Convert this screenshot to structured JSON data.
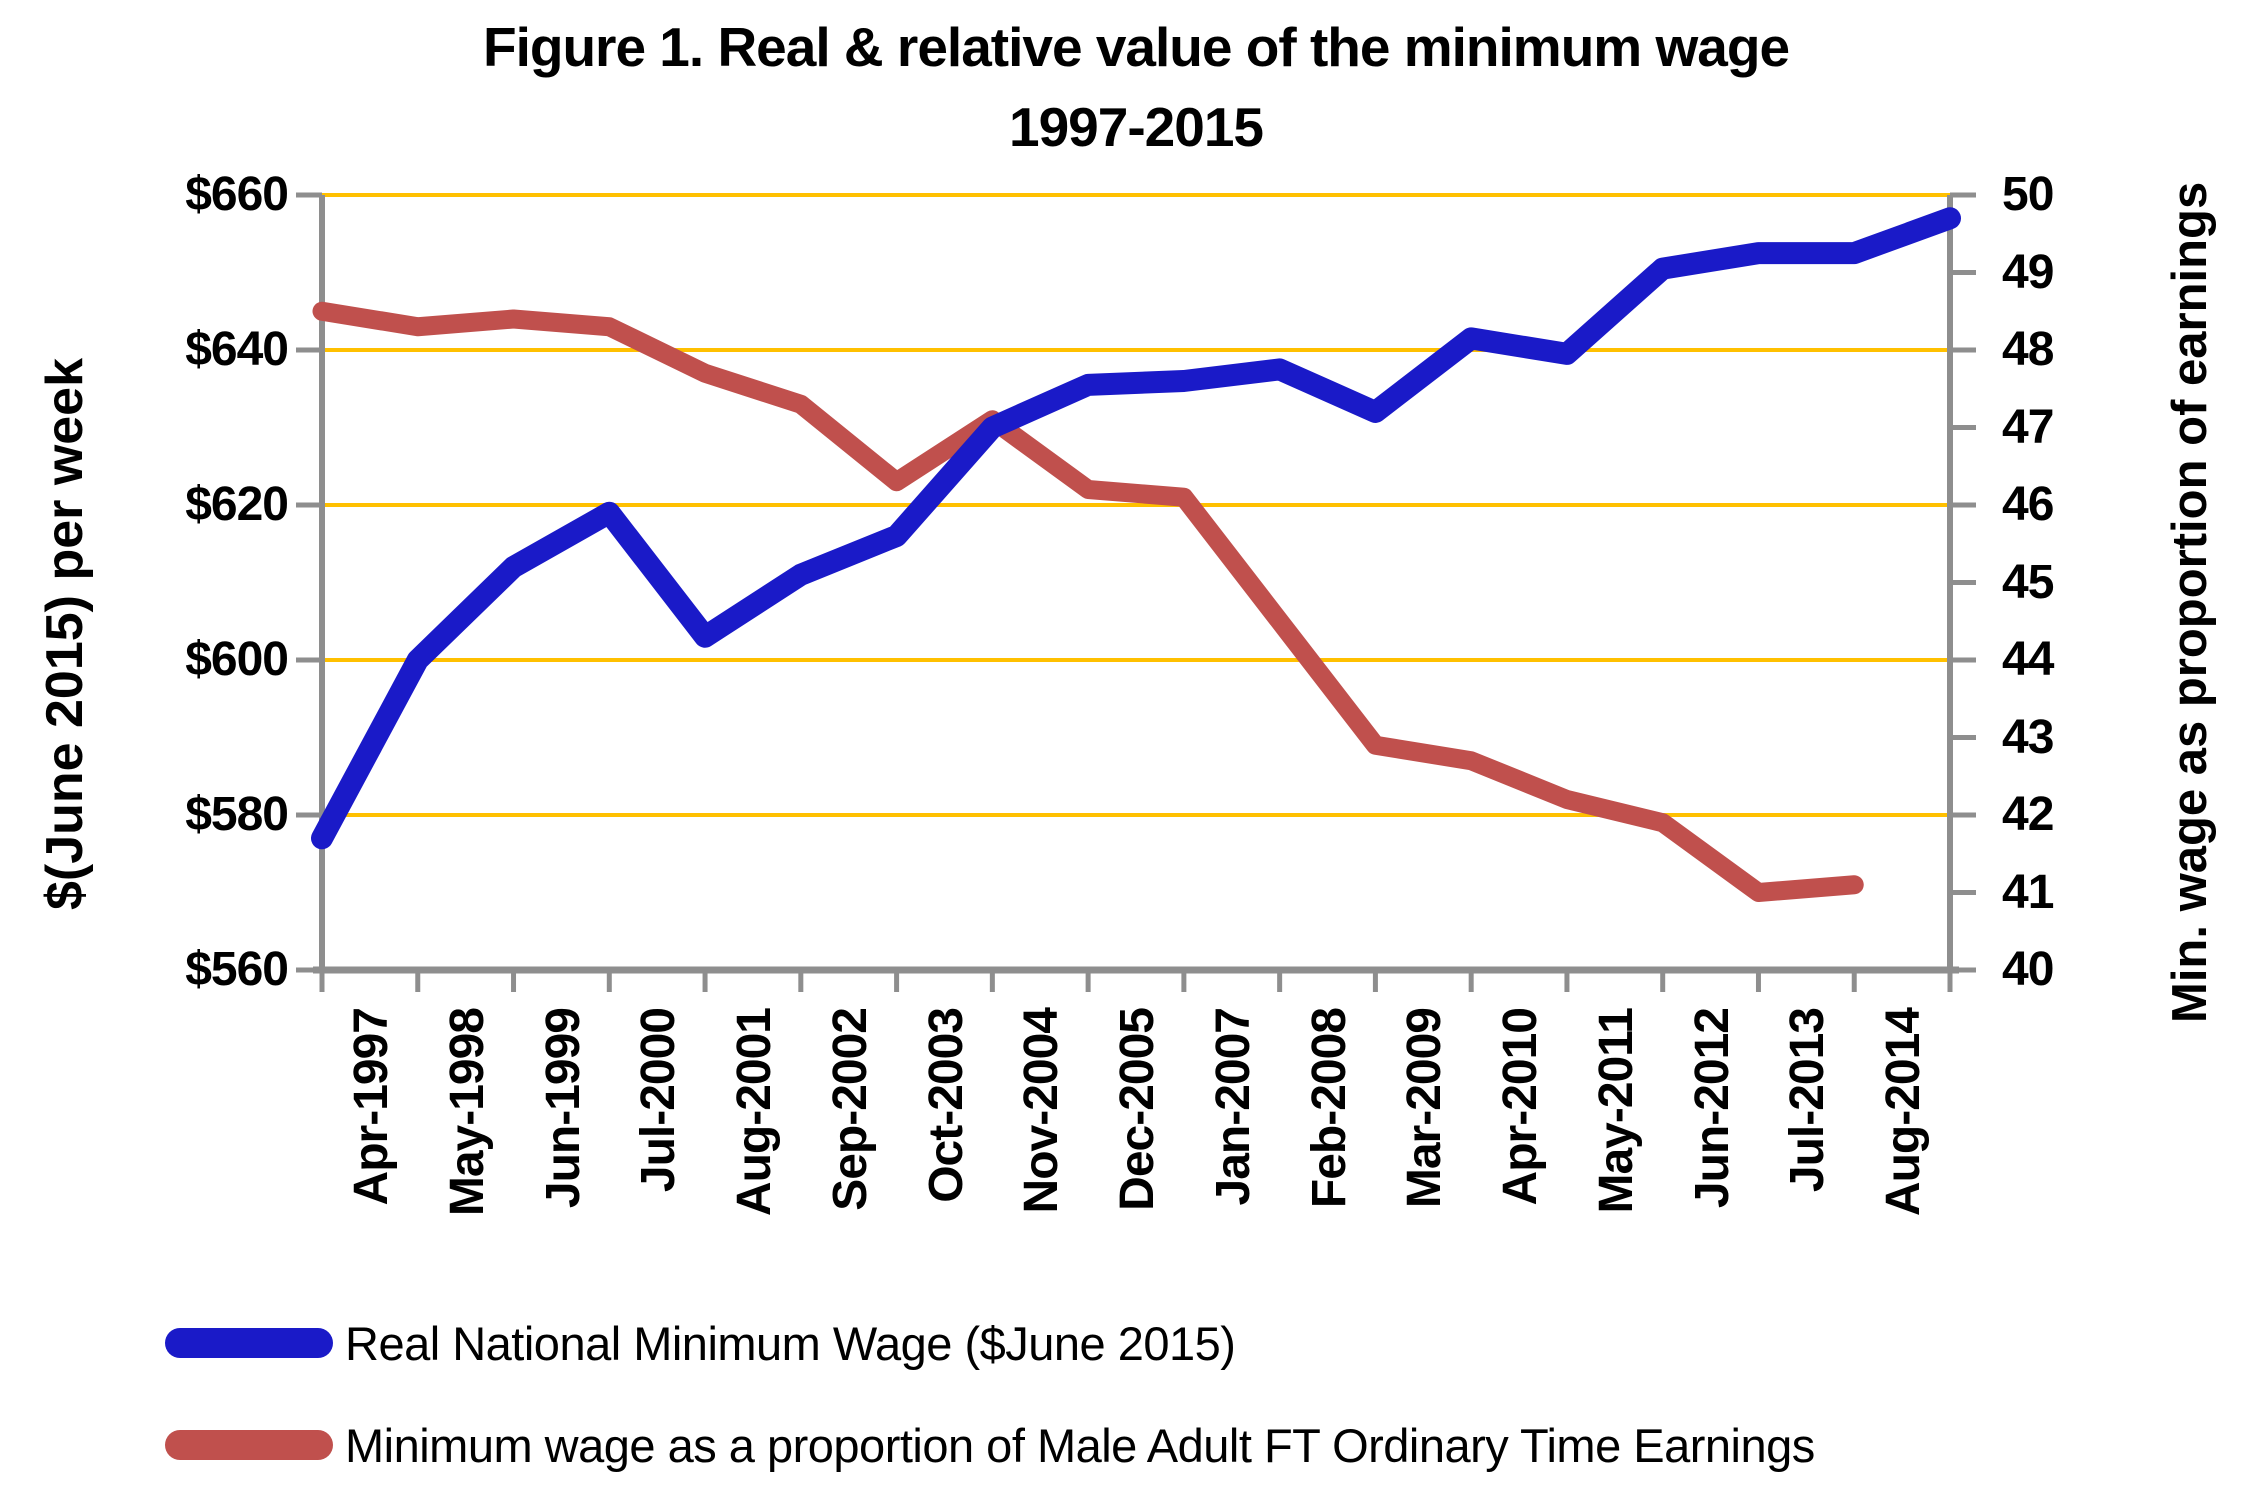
{
  "title": {
    "line1": "Figure 1. Real & relative value of the minimum wage",
    "line2": "1997-2015"
  },
  "chart_data": {
    "type": "line",
    "categories": [
      "Apr-1997",
      "May-1998",
      "Jun-1999",
      "Jul-2000",
      "Aug-2001",
      "Sep-2002",
      "Oct-2003",
      "Nov-2004",
      "Dec-2005",
      "Jan-2007",
      "Feb-2008",
      "Mar-2009",
      "Apr-2010",
      "May-2011",
      "Jun-2012",
      "Jul-2013",
      "Aug-2014",
      ""
    ],
    "series": [
      {
        "name": "Real National Minimum Wage ($June 2015)",
        "color": "#1a1ac8",
        "axis": "left",
        "line_width": 22,
        "values": [
          577,
          600,
          612,
          619,
          603,
          611,
          616,
          630,
          635.5,
          636,
          637.5,
          632,
          641.5,
          639.5,
          650.5,
          652.5,
          652.5,
          657
        ]
      },
      {
        "name": "Minimum wage as a proportion of Male Adult FT Ordinary Time Earnings",
        "color": "#c0504d",
        "axis": "right",
        "line_width": 19,
        "values": [
          48.5,
          48.3,
          48.4,
          48.3,
          47.7,
          47.3,
          46.3,
          47.1,
          46.2,
          46.1,
          44.5,
          42.9,
          42.7,
          42.2,
          41.9,
          41.0,
          41.1
        ]
      }
    ],
    "left_axis": {
      "title": "$(June 2015) per week",
      "min": 560,
      "max": 660,
      "step": 20,
      "tick_labels": [
        "$660",
        "$640",
        "$620",
        "$600",
        "$580",
        "$560"
      ]
    },
    "right_axis": {
      "title": "Min. wage as proportion of earnings",
      "min": 40,
      "max": 50,
      "step": 1,
      "tick_labels": [
        "50",
        "49",
        "48",
        "47",
        "46",
        "45",
        "44",
        "43",
        "42",
        "41",
        "40"
      ]
    },
    "gridlines": {
      "color": "#ffc000",
      "at_left_values": [
        660,
        640,
        620,
        600,
        580
      ]
    },
    "axis_color": "#8e8e8e",
    "legend_position": "bottom-left",
    "grid_on": true
  }
}
